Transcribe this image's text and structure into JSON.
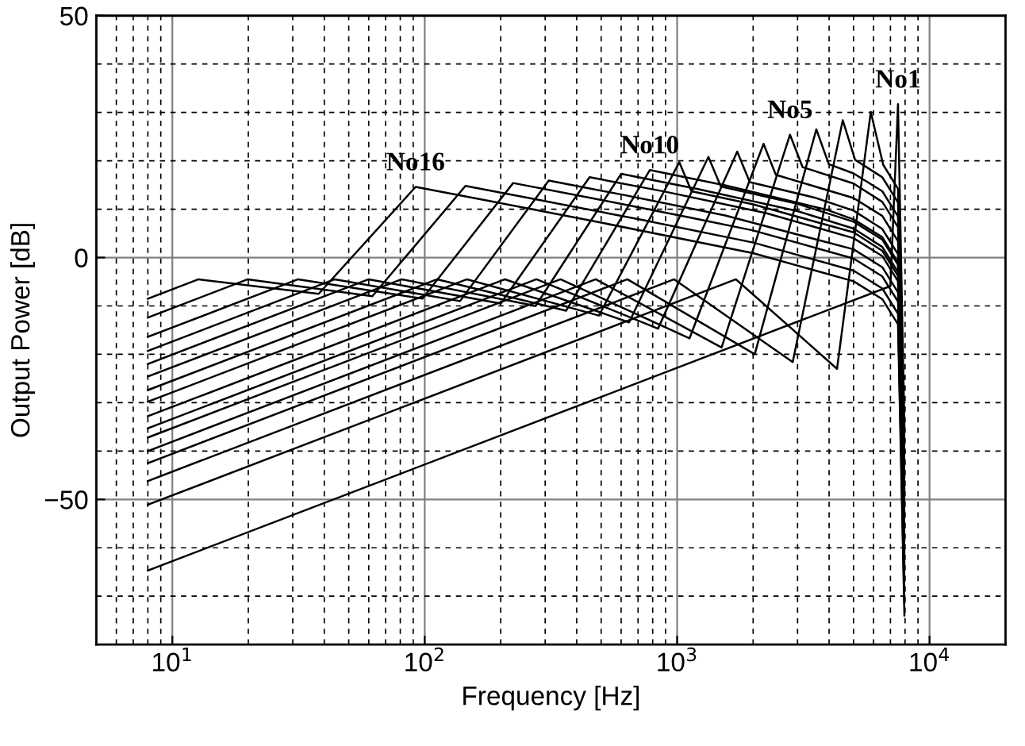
{
  "chart_data": {
    "type": "line",
    "xlabel": "Frequency [Hz]",
    "ylabel": "Output Power [dB]",
    "log": "x",
    "grid": true,
    "line_style": "solid",
    "xlim": [
      5,
      20000
    ],
    "ylim": [
      -80,
      50
    ],
    "xticks": [
      {
        "value": 6,
        "label": null
      },
      {
        "value": 7,
        "label": null
      },
      {
        "value": 8,
        "label": null
      },
      {
        "value": 9,
        "label": null
      },
      {
        "value": 10,
        "label": "10$^{1}$"
      },
      {
        "value": 20,
        "label": null
      },
      {
        "value": 30,
        "label": null
      },
      {
        "value": 40,
        "label": null
      },
      {
        "value": 50,
        "label": null
      },
      {
        "value": 60,
        "label": null
      },
      {
        "value": 70,
        "label": null
      },
      {
        "value": 80,
        "label": null
      },
      {
        "value": 90,
        "label": null
      },
      {
        "value": 100,
        "label": "10$^{2}$"
      },
      {
        "value": 200,
        "label": null
      },
      {
        "value": 300,
        "label": null
      },
      {
        "value": 400,
        "label": null
      },
      {
        "value": 500,
        "label": null
      },
      {
        "value": 600,
        "label": null
      },
      {
        "value": 700,
        "label": null
      },
      {
        "value": 800,
        "label": null
      },
      {
        "value": 900,
        "label": null
      },
      {
        "value": 1000,
        "label": "10$^{3}$"
      },
      {
        "value": 2000,
        "label": null
      },
      {
        "value": 3000,
        "label": null
      },
      {
        "value": 4000,
        "label": null
      },
      {
        "value": 5000,
        "label": null
      },
      {
        "value": 6000,
        "label": null
      },
      {
        "value": 7000,
        "label": null
      },
      {
        "value": 8000,
        "label": null
      },
      {
        "value": 9000,
        "label": null
      },
      {
        "value": 10000,
        "label": "10$^{4}$"
      }
    ],
    "yticks": [
      {
        "value": -70,
        "label": null
      },
      {
        "value": -60,
        "label": null
      },
      {
        "value": -50,
        "label": "−50"
      },
      {
        "value": -40,
        "label": null
      },
      {
        "value": -30,
        "label": null
      },
      {
        "value": -20,
        "label": null
      },
      {
        "value": -10,
        "label": null
      },
      0,
      {
        "value": 10,
        "label": null
      },
      {
        "value": 20,
        "label": null
      },
      {
        "value": 30,
        "label": null
      },
      {
        "value": 40,
        "label": null
      },
      50
    ],
    "annotations": [
      {
        "text": "No16",
        "x": 92,
        "y": 14.6
      },
      {
        "text": "No10",
        "x": 780,
        "y": 18.1
      },
      {
        "text": "No5",
        "x": 2800,
        "y": 25.4
      },
      {
        "text": "No1",
        "x": 7500,
        "y": 31.7
      }
    ],
    "series": [
      {
        "color": "#000000",
        "x": [
          8,
          7000,
          7500,
          7950
        ],
        "values": [
          -64.7,
          -5.9,
          31.7,
          -35
        ]
      },
      {
        "color": "#000000",
        "x": [
          8,
          1710,
          4300,
          5850,
          6550,
          7500,
          7950
        ],
        "values": [
          -51.1,
          -4.5,
          -23,
          30.1,
          19.2,
          14.2,
          -37.6
        ]
      },
      {
        "color": "#000000",
        "x": [
          8,
          973,
          2870,
          4530,
          5070,
          6500,
          7500,
          7950
        ],
        "values": [
          -46.2,
          -4.5,
          -21.6,
          28.4,
          20.2,
          16.6,
          11.4,
          -40.2
        ]
      },
      {
        "color": "#000000",
        "x": [
          8,
          635,
          2030,
          3560,
          3990,
          5000,
          6500,
          7500,
          7950
        ],
        "values": [
          -42.5,
          -4.5,
          -20,
          26.5,
          19.3,
          17.4,
          13.7,
          8.5,
          -42.8
        ]
      },
      {
        "color": "#000000",
        "x": [
          8,
          476,
          1500,
          2800,
          3140,
          5000,
          6500,
          7500,
          7950
        ],
        "values": [
          -40,
          -4.5,
          -18.6,
          25.4,
          18.7,
          15.3,
          11.5,
          6.3,
          -45.4
        ]
      },
      {
        "color": "#000000",
        "x": [
          8,
          345,
          1120,
          2200,
          2460,
          5000,
          6500,
          7500,
          7950
        ],
        "values": [
          -37.2,
          -4.5,
          -16.7,
          23.5,
          17.1,
          12.3,
          8.6,
          3.4,
          -48
        ]
      },
      {
        "color": "#000000",
        "x": [
          8,
          277,
          840,
          1730,
          1940,
          3500,
          5000,
          6500,
          7500,
          7950
        ],
        "values": [
          -35.3,
          -4.5,
          -14.7,
          21.9,
          15.6,
          12.4,
          9.7,
          5.9,
          0.7,
          -50.6
        ]
      },
      {
        "color": "#000000",
        "x": [
          8,
          208,
          645,
          1330,
          1490,
          3000,
          5000,
          6500,
          7500,
          7950
        ],
        "values": [
          -32.8,
          -4.5,
          -13.4,
          20.8,
          14.7,
          11.1,
          7.4,
          3.7,
          -1.5,
          -53.2
        ]
      },
      {
        "color": "#000000",
        "x": [
          8,
          147,
          490,
          1020,
          1140,
          2000,
          5000,
          6500,
          7500,
          7950
        ],
        "values": [
          -29.8,
          -4.5,
          -12,
          19.7,
          13.7,
          11,
          5.2,
          1.4,
          -3.8,
          -55.8
        ]
      },
      {
        "color": "#000000",
        "x": [
          8,
          112,
          363,
          780,
          1560,
          3900,
          5000,
          6500,
          7500,
          7950
        ],
        "values": [
          -27.4,
          -4.5,
          -11,
          18.1,
          14.9,
          9.9,
          7.9,
          4.2,
          -1,
          -58.4
        ]
      },
      {
        "color": "#000000",
        "x": [
          8,
          81,
          275,
          600,
          1200,
          3000,
          5000,
          6500,
          7500,
          7950
        ],
        "values": [
          -24.6,
          -4.5,
          -10,
          17.3,
          14.2,
          9.6,
          6,
          2.2,
          -3,
          -61
        ]
      },
      {
        "color": "#000000",
        "x": [
          8,
          60,
          200,
          450,
          900,
          2250,
          5000,
          6500,
          7500,
          7950
        ],
        "values": [
          -22,
          -4.5,
          -9.5,
          16.6,
          13.6,
          9.2,
          4,
          0.3,
          -4.9,
          -63.6
        ]
      },
      {
        "color": "#000000",
        "x": [
          8,
          44,
          138,
          310,
          620,
          1550,
          5000,
          6500,
          7500,
          7950
        ],
        "values": [
          -19.3,
          -4.5,
          -9,
          15.9,
          12.9,
          8.7,
          1.7,
          -2,
          -7.2,
          -66.2
        ]
      },
      {
        "color": "#000000",
        "x": [
          8,
          31.5,
          98,
          224,
          448,
          1120,
          2000,
          5000,
          6500,
          7500,
          7950
        ],
        "values": [
          -16.4,
          -4.5,
          -8.5,
          15.4,
          12.4,
          8.3,
          5.6,
          -0.2,
          -3.9,
          -9.1,
          -68.8
        ]
      },
      {
        "color": "#000000",
        "x": [
          8,
          19.9,
          62,
          145,
          290,
          725,
          2000,
          5000,
          6500,
          7500,
          7950
        ],
        "values": [
          -12.4,
          -4.5,
          -8,
          14.8,
          11.8,
          7.8,
          3.1,
          -2.7,
          -6.4,
          -11.6,
          -71.4
        ]
      },
      {
        "color": "#000000",
        "x": [
          8,
          12.7,
          38,
          92,
          184,
          460,
          2000,
          5000,
          6500,
          7500,
          7950
        ],
        "values": [
          -8.5,
          -4.5,
          -7.5,
          14.6,
          11.6,
          7.6,
          0.9,
          -4.9,
          -8.6,
          -13.8,
          -74
        ]
      }
    ]
  }
}
